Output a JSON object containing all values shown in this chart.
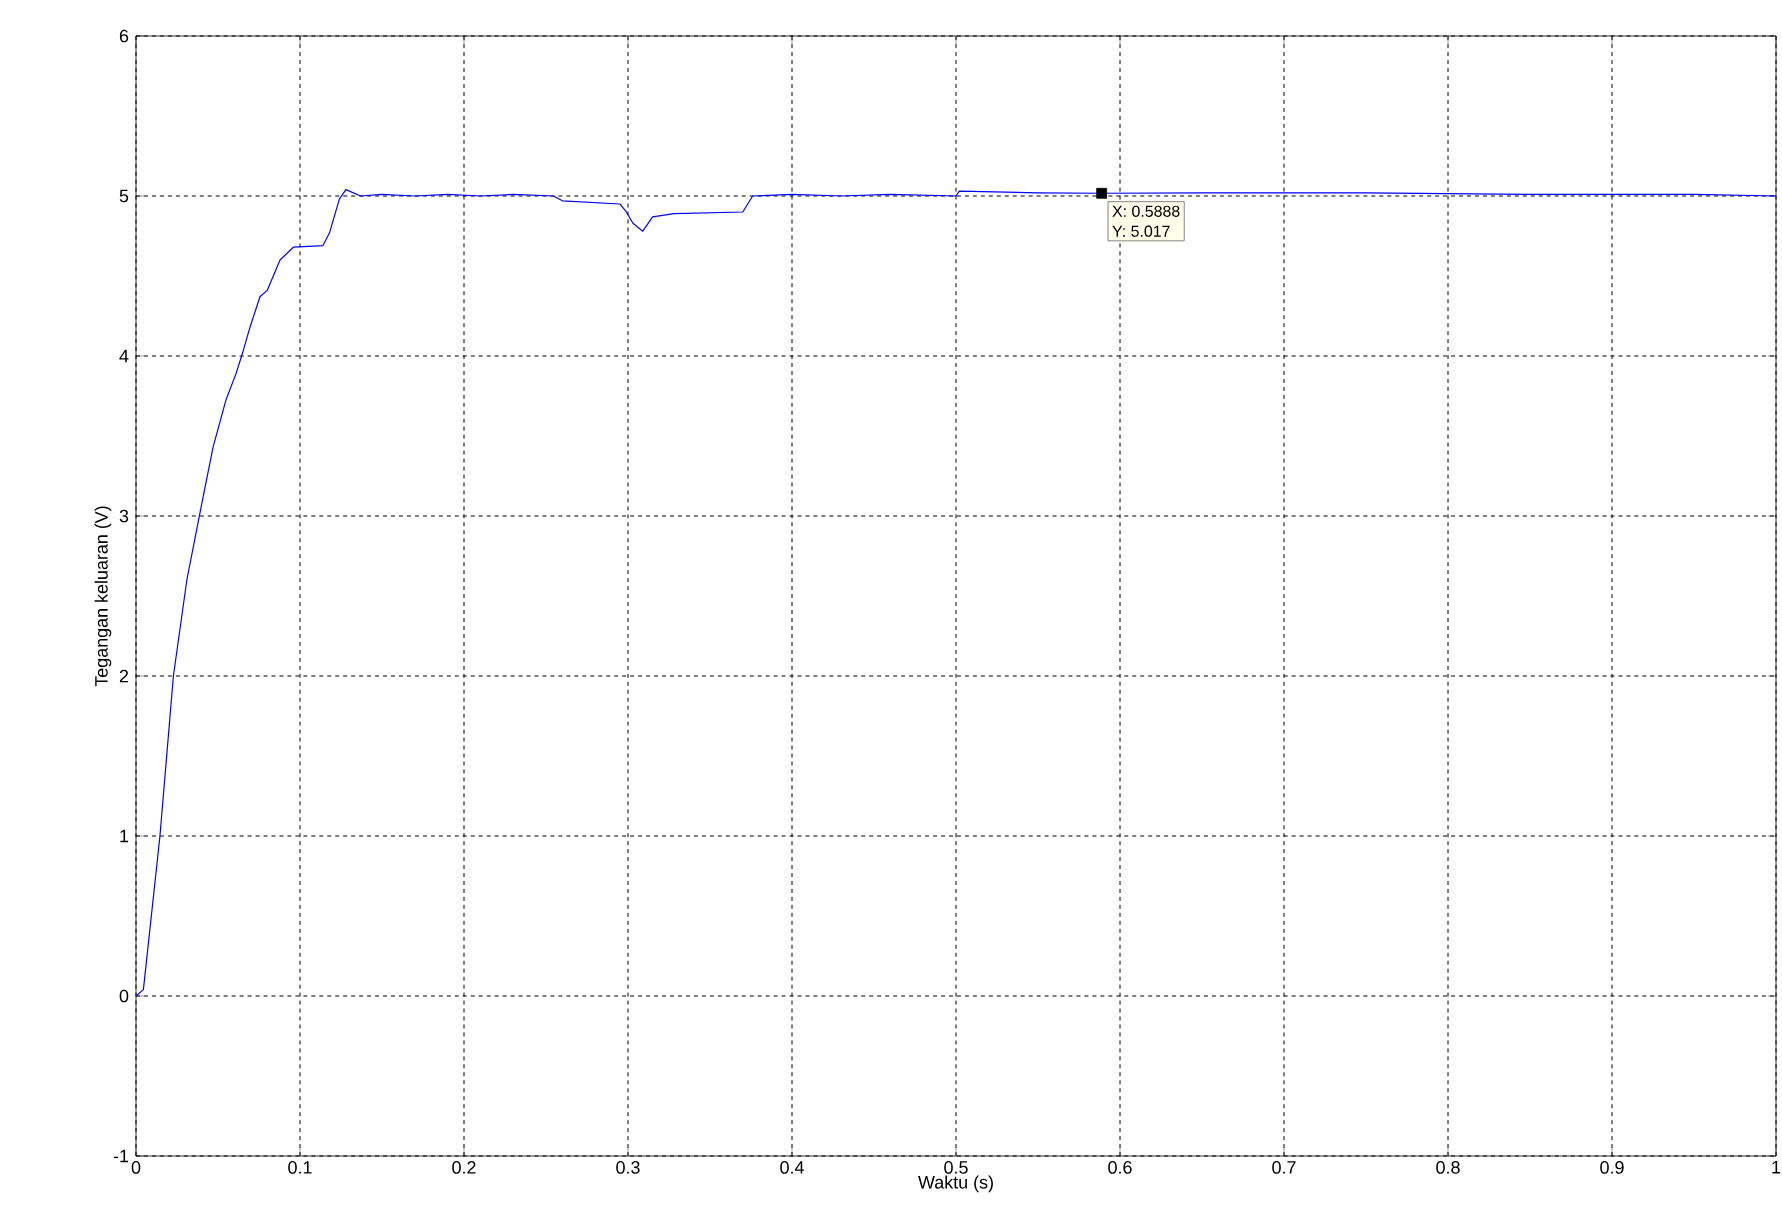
{
  "chart_data": {
    "type": "line",
    "xlabel": "Waktu (s)",
    "ylabel": "Tegangan keluaran (V)",
    "xlim": [
      0,
      1
    ],
    "ylim": [
      -1,
      6
    ],
    "xticks": [
      0,
      0.1,
      0.2,
      0.3,
      0.4,
      0.5,
      0.6,
      0.7,
      0.8,
      0.9,
      1
    ],
    "yticks": [
      -1,
      0,
      1,
      2,
      3,
      4,
      5,
      6
    ],
    "grid": true,
    "line_style": "solid",
    "marker": "none",
    "series": [
      {
        "color": "#0000ff",
        "x": [
          0,
          0.0045,
          0.0146,
          0.0228,
          0.031,
          0.039,
          0.047,
          0.055,
          0.061,
          0.065,
          0.0695,
          0.0756,
          0.08,
          0.0878,
          0.096,
          0.114,
          0.118,
          0.124,
          0.128,
          0.137,
          0.15,
          0.17,
          0.19,
          0.21,
          0.23,
          0.2545,
          0.26,
          0.295,
          0.299,
          0.303,
          0.309,
          0.315,
          0.328,
          0.37,
          0.376,
          0.4,
          0.43,
          0.46,
          0.5,
          0.502,
          0.55,
          0.5888,
          0.65,
          0.75,
          0.85,
          0.95,
          1
        ],
        "values": [
          0,
          0.04,
          1.0,
          2.0,
          2.6,
          3.02,
          3.43,
          3.73,
          3.89,
          4.02,
          4.18,
          4.37,
          4.41,
          4.6,
          4.68,
          4.69,
          4.77,
          4.98,
          5.04,
          5.0,
          5.01,
          5.0,
          5.01,
          5.0,
          5.01,
          5.0,
          4.97,
          4.95,
          4.9,
          4.83,
          4.78,
          4.87,
          4.89,
          4.9,
          5.0,
          5.01,
          5.0,
          5.01,
          5.0,
          5.03,
          5.02,
          5.017,
          5.02,
          5.02,
          5.01,
          5.01,
          5.0
        ]
      }
    ],
    "annotations": [
      {
        "text": "X: 0.5888",
        "x": 0.5888,
        "y": 5.017
      },
      {
        "text": "Y: 5.017",
        "x": 0.5888,
        "y": 5.017
      }
    ]
  }
}
